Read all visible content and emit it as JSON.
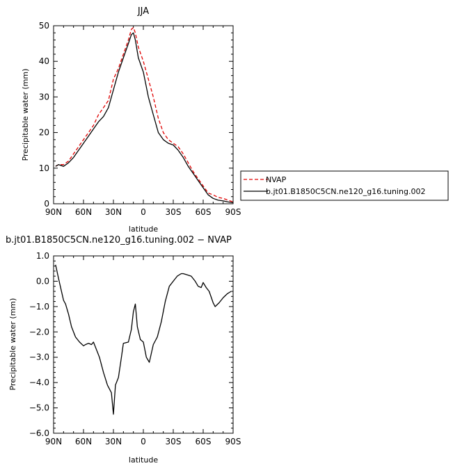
{
  "chart_data": [
    {
      "type": "line",
      "title": "JJA",
      "xlabel": "latitude",
      "ylabel": "Precipitable water (mm)",
      "ylim": [
        0,
        50
      ],
      "yticks": [
        "0",
        "10",
        "20",
        "30",
        "40",
        "50"
      ],
      "xlim": [
        90,
        -90
      ],
      "xticks": [
        "90N",
        "60N",
        "30N",
        "0",
        "30S",
        "60S",
        "90S"
      ],
      "xtick_values": [
        90,
        60,
        30,
        0,
        -30,
        -60,
        -90
      ],
      "grid": false,
      "legend_position": "right",
      "series": [
        {
          "name": "NVAP",
          "color": "#e00000",
          "dash": "dashed",
          "x": [
            88,
            85,
            80,
            75,
            70,
            65,
            60,
            55,
            50,
            45,
            40,
            35,
            30,
            25,
            20,
            15,
            12,
            10,
            8,
            5,
            0,
            -5,
            -10,
            -15,
            -20,
            -25,
            -30,
            -35,
            -40,
            -45,
            -50,
            -55,
            -60,
            -65,
            -70,
            -75,
            -80,
            -85,
            -90
          ],
          "y": [
            10.5,
            11,
            11,
            12,
            14,
            16,
            18,
            20,
            22,
            25,
            27,
            29,
            35,
            38,
            42,
            46,
            49,
            49.5,
            48,
            44,
            40,
            35,
            30,
            24,
            20,
            18,
            17,
            16,
            14,
            11.5,
            9,
            7,
            5,
            3,
            2.5,
            1.8,
            1.5,
            1,
            0.5
          ]
        },
        {
          "name": "b.jt01.B1850C5CN.ne120_g16.tuning.002",
          "color": "#000000",
          "dash": "solid",
          "x": [
            88,
            85,
            80,
            75,
            70,
            65,
            60,
            55,
            50,
            45,
            40,
            35,
            30,
            25,
            20,
            15,
            12,
            10,
            8,
            5,
            0,
            -5,
            -10,
            -15,
            -20,
            -25,
            -30,
            -35,
            -40,
            -45,
            -50,
            -55,
            -60,
            -65,
            -70,
            -75,
            -80,
            -85,
            -90
          ],
          "y": [
            10.5,
            11,
            10.5,
            11.5,
            13,
            15,
            17,
            19,
            21,
            23,
            24.5,
            27,
            32,
            37,
            41,
            45,
            47.5,
            48,
            46,
            41,
            37,
            30,
            25,
            20,
            18,
            17,
            16.5,
            15,
            13,
            10.5,
            8.5,
            6.5,
            4.5,
            2.5,
            1.5,
            1,
            0.8,
            0.5,
            0.3
          ]
        }
      ]
    },
    {
      "type": "line",
      "title": "b.jt01.B1850C5CN.ne120_g16.tuning.002 − NVAP",
      "xlabel": "latitude",
      "ylabel": "Precipitable water (mm)",
      "ylim": [
        -6,
        1
      ],
      "yticks": [
        "−6.0",
        "−5.0",
        "−4.0",
        "−3.0",
        "−2.0",
        "−1.0",
        "0.0",
        "1.0"
      ],
      "xlim": [
        90,
        -90
      ],
      "xticks": [
        "90N",
        "60N",
        "30N",
        "0",
        "30S",
        "60S",
        "90S"
      ],
      "xtick_values": [
        90,
        60,
        30,
        0,
        -30,
        -60,
        -90
      ],
      "grid": false,
      "series": [
        {
          "color": "#000000",
          "dash": "solid",
          "x": [
            88,
            85,
            80,
            78,
            75,
            72,
            68,
            64,
            60,
            58,
            55,
            52,
            50,
            47,
            44,
            40,
            36,
            32,
            30,
            28,
            25,
            22,
            20,
            15,
            12,
            10,
            8,
            6,
            3,
            0,
            -3,
            -6,
            -10,
            -14,
            -18,
            -22,
            -26,
            -30,
            -34,
            -38,
            -40,
            -44,
            -48,
            -52,
            -55,
            -58,
            -60,
            -63,
            -66,
            -70,
            -72,
            -76,
            -80,
            -84,
            -88
          ],
          "y": [
            0.65,
            0.1,
            -0.75,
            -0.9,
            -1.3,
            -1.8,
            -2.2,
            -2.4,
            -2.55,
            -2.5,
            -2.45,
            -2.5,
            -2.4,
            -2.7,
            -3.0,
            -3.6,
            -4.1,
            -4.4,
            -5.25,
            -4.1,
            -3.8,
            -3.0,
            -2.45,
            -2.4,
            -1.9,
            -1.2,
            -0.9,
            -1.8,
            -2.3,
            -2.4,
            -3.0,
            -3.2,
            -2.5,
            -2.2,
            -1.6,
            -0.8,
            -0.2,
            0.0,
            0.2,
            0.3,
            0.3,
            0.25,
            0.2,
            0.0,
            -0.2,
            -0.25,
            -0.05,
            -0.25,
            -0.4,
            -0.85,
            -1.0,
            -0.85,
            -0.65,
            -0.5,
            -0.4
          ]
        }
      ]
    }
  ]
}
